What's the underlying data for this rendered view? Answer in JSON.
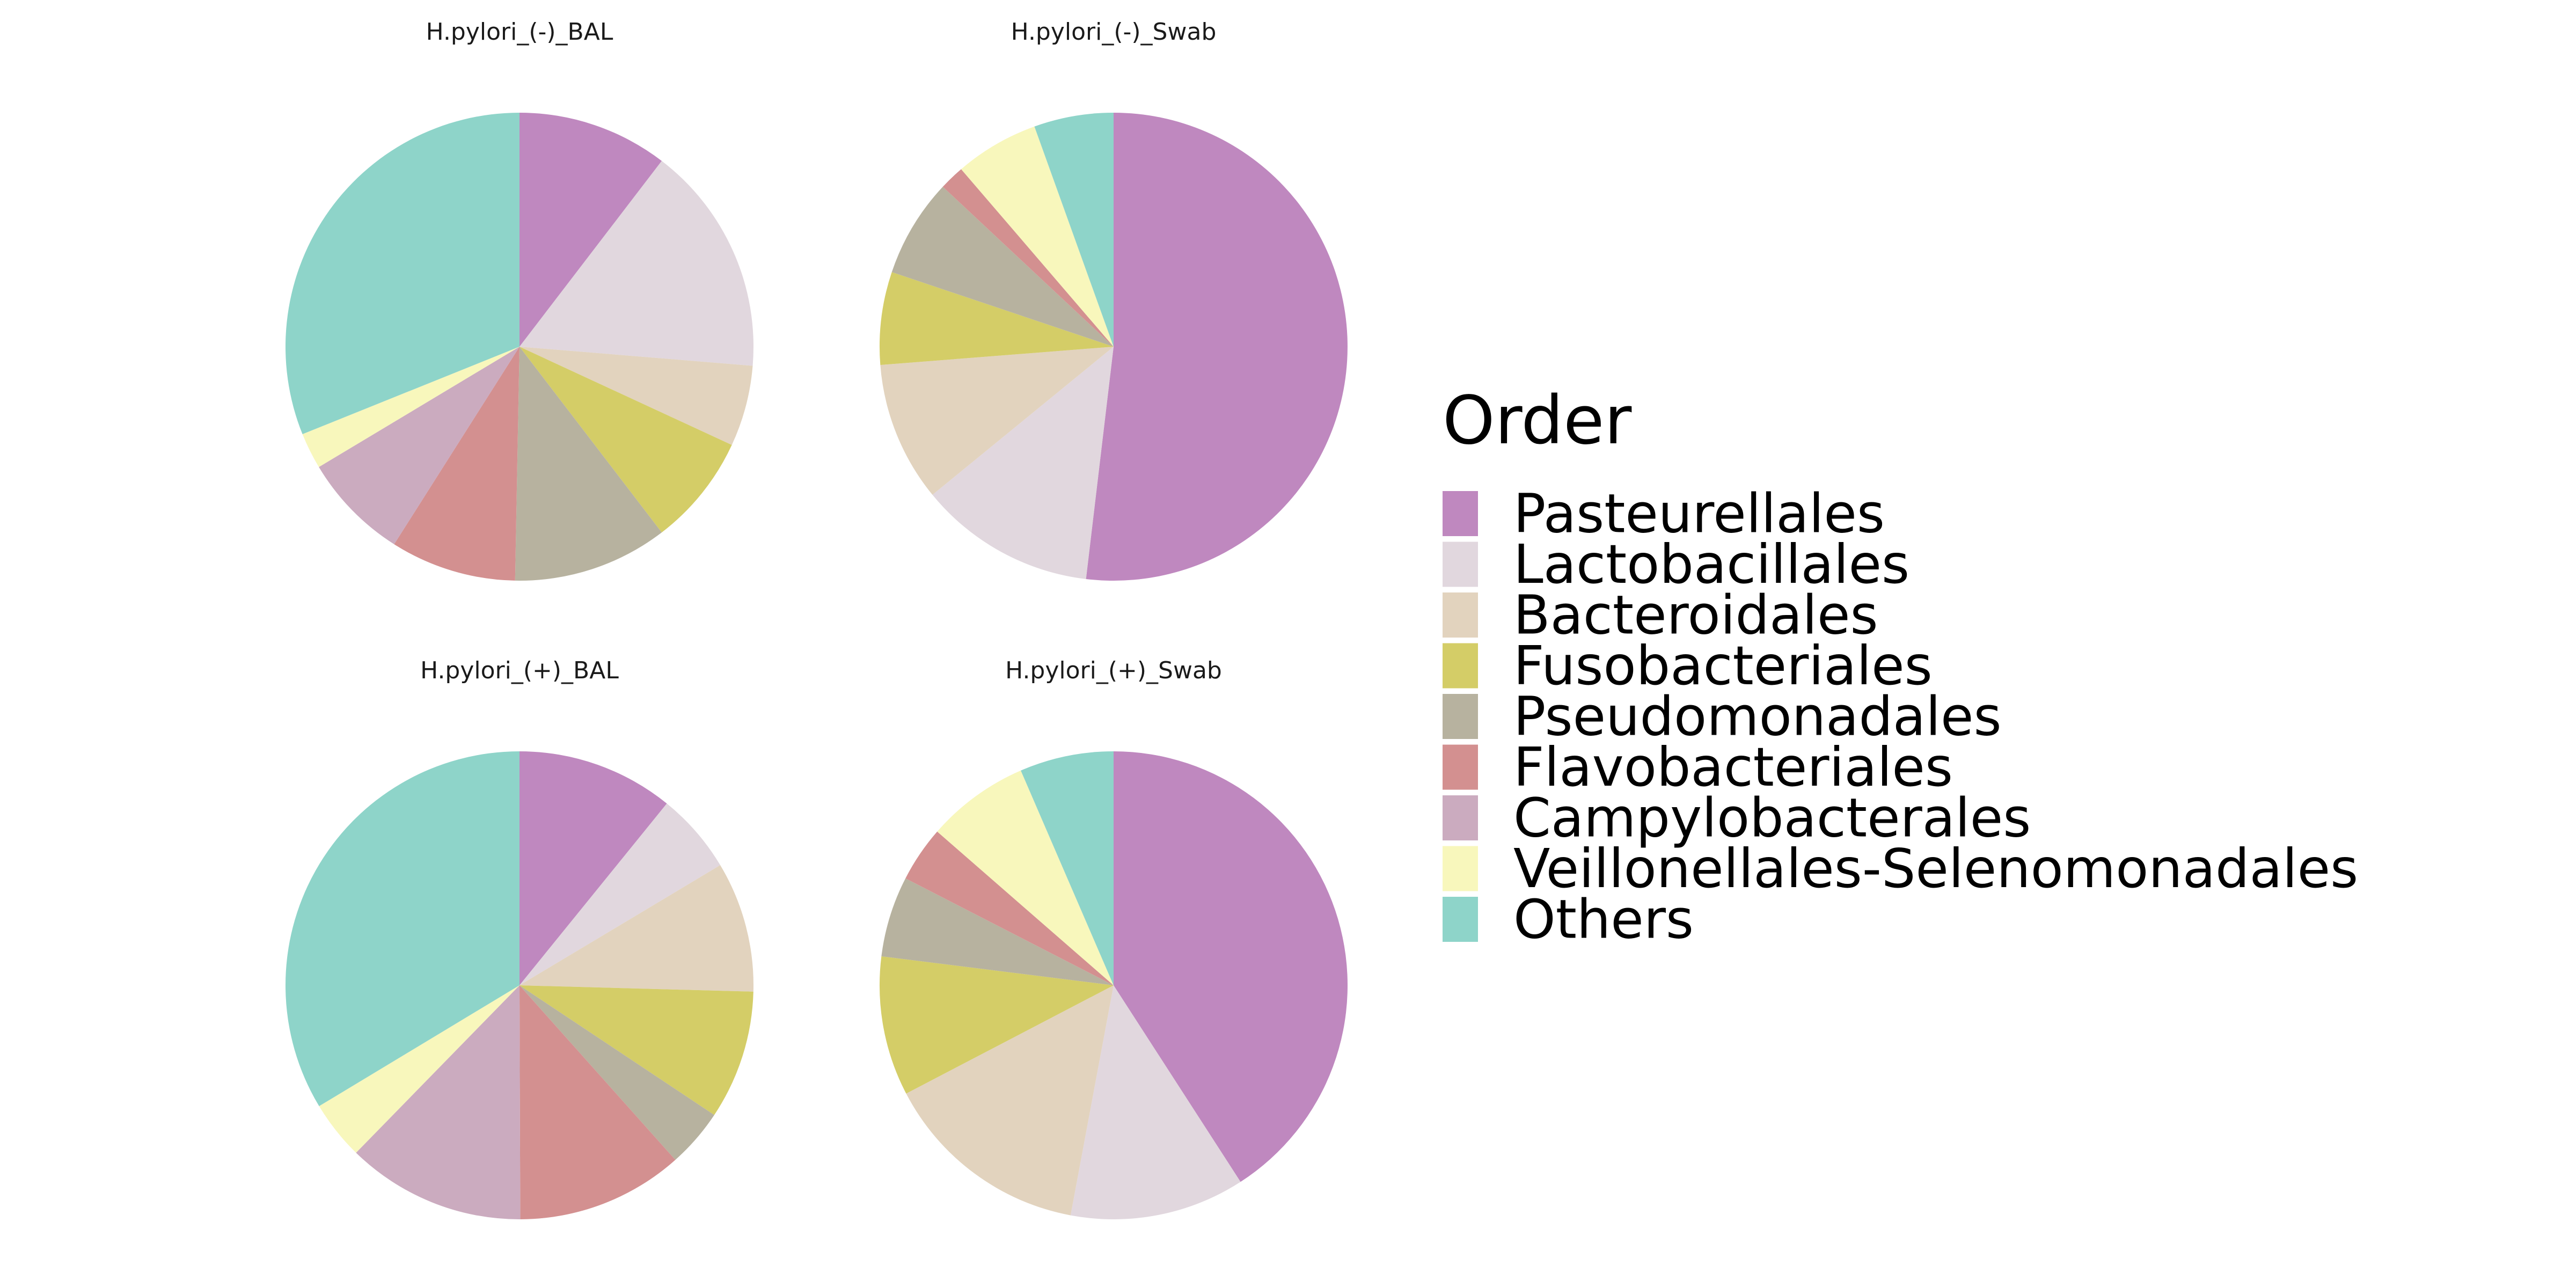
{
  "chart_data": {
    "type": "pie",
    "legend": {
      "title": "Order",
      "placement": "right",
      "items": [
        {
          "label": "Pasteurellales",
          "color": "#BF88BF"
        },
        {
          "label": "Lactobacillales",
          "color": "#E1D7DE"
        },
        {
          "label": "Bacteroidales",
          "color": "#E2D3BE"
        },
        {
          "label": "Fusobacteriales",
          "color": "#D4CD67"
        },
        {
          "label": "Pseudomonadales",
          "color": "#B7B29F"
        },
        {
          "label": "Flavobacteriales",
          "color": "#D39090"
        },
        {
          "label": "Campylobacterales",
          "color": "#CBABBF"
        },
        {
          "label": "Veillonellales-Selenomonadales",
          "color": "#F8F7BC"
        },
        {
          "label": "Others",
          "color": "#8ED4C9"
        }
      ]
    },
    "categories": [
      "Pasteurellales",
      "Lactobacillales",
      "Bacteroidales",
      "Fusobacteriales",
      "Pseudomonadales",
      "Flavobacteriales",
      "Campylobacterales",
      "Veillonellales-Selenomonadales",
      "Others"
    ],
    "panels": [
      {
        "title": "H.pylori_(-)_BAL",
        "values": [
          10.4,
          15.9,
          5.6,
          7.7,
          10.7,
          8.7,
          7.4,
          2.5,
          31.1
        ]
      },
      {
        "title": "H.pylori_(-)_Swab",
        "values": [
          51.0,
          12.0,
          9.5,
          6.3,
          6.7,
          1.7,
          0.0,
          5.7,
          5.4
        ]
      },
      {
        "title": "H.pylori_(+)_BAL",
        "values": [
          10.7,
          5.5,
          8.9,
          8.8,
          4.0,
          11.4,
          12.2,
          4.0,
          33.2
        ]
      },
      {
        "title": "H.pylori_(+)_Swab",
        "values": [
          40.3,
          11.9,
          14.2,
          9.5,
          5.5,
          3.8,
          0.0,
          7.0,
          6.4
        ]
      }
    ]
  }
}
